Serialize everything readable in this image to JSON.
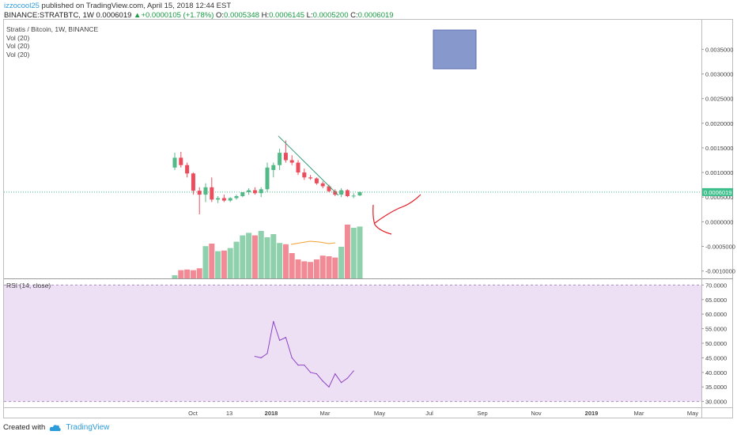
{
  "header": {
    "author": "izzocool25",
    "published_text": "published on TradingView.com, April 15, 2018 12:44 EST",
    "symbol": "BINANCE:STRATBTC, 1W",
    "price": "0.0006019",
    "change_text": "+0.0000105 (+1.78%)",
    "ohlc": {
      "O": "0.0005348",
      "H": "0.0006145",
      "L": "0.0005200",
      "C": "0.0006019"
    }
  },
  "legend": {
    "title": "Stratis / Bitcoin, 1W, BINANCE",
    "vol_lines": [
      "Vol (20)",
      "Vol (20)",
      "Vol (20)"
    ]
  },
  "rsi_label": "RSI (14, close)",
  "footer": {
    "created_with": "Created with",
    "brand": "TradingView"
  },
  "colors": {
    "up": "#53b987",
    "down": "#eb4d5c",
    "up_vol": "#8fd1ad",
    "down_vol": "#f18a94",
    "rsi_line": "#8e44c4",
    "rsi_band": "#ede0f5",
    "price_line": "#3cbf8a",
    "ma_line": "#f0a030",
    "drawing_red": "#e31b23",
    "drawing_box": "#7b8dc8"
  },
  "chart_data": [
    {
      "type": "candlestick",
      "title": "Stratis / Bitcoin, 1W, BINANCE",
      "x_ticks": [
        "Oct",
        "13",
        "2018",
        "Mar",
        "May",
        "Jul",
        "Sep",
        "Nov",
        "2019",
        "Mar",
        "May"
      ],
      "y_ticks": [
        "0.0035000",
        "0.0030000",
        "0.0025000",
        "0.0020000",
        "0.0015000",
        "0.0010000",
        "0.0005000",
        "0.0000000",
        "-0.0005000",
        "-0.0010000"
      ],
      "ylim": [
        -0.00115,
        0.0041
      ],
      "last_price": 0.0006019,
      "last_price_label": "0.0006019",
      "candles": [
        {
          "o": 0.0011,
          "h": 0.0014,
          "l": 0.00105,
          "c": 0.0013
        },
        {
          "o": 0.0013,
          "h": 0.00142,
          "l": 0.0011,
          "c": 0.00115
        },
        {
          "o": 0.00115,
          "h": 0.0012,
          "l": 0.0009,
          "c": 0.00098
        },
        {
          "o": 0.00098,
          "h": 0.001,
          "l": 0.00055,
          "c": 0.00063
        },
        {
          "o": 0.00063,
          "h": 0.0007,
          "l": 0.00015,
          "c": 0.00055
        },
        {
          "o": 0.00055,
          "h": 0.00078,
          "l": 0.0004,
          "c": 0.0007
        },
        {
          "o": 0.0007,
          "h": 0.0009,
          "l": 0.0004,
          "c": 0.00045
        },
        {
          "o": 0.00045,
          "h": 0.00052,
          "l": 0.00038,
          "c": 0.00048
        },
        {
          "o": 0.00048,
          "h": 0.00055,
          "l": 0.0004,
          "c": 0.00043
        },
        {
          "o": 0.00043,
          "h": 0.0005,
          "l": 0.0004,
          "c": 0.00048
        },
        {
          "o": 0.00048,
          "h": 0.00055,
          "l": 0.00045,
          "c": 0.00052
        },
        {
          "o": 0.00052,
          "h": 0.0006,
          "l": 0.0005,
          "c": 0.0006
        },
        {
          "o": 0.0006,
          "h": 0.00068,
          "l": 0.00055,
          "c": 0.00064
        },
        {
          "o": 0.00064,
          "h": 0.0007,
          "l": 0.00055,
          "c": 0.00058
        },
        {
          "o": 0.00058,
          "h": 0.0007,
          "l": 0.0005,
          "c": 0.00066
        },
        {
          "o": 0.00066,
          "h": 0.0012,
          "l": 0.0006,
          "c": 0.0011
        },
        {
          "o": 0.00105,
          "h": 0.0012,
          "l": 0.0009,
          "c": 0.00115
        },
        {
          "o": 0.00115,
          "h": 0.00148,
          "l": 0.00105,
          "c": 0.0014
        },
        {
          "o": 0.0014,
          "h": 0.00165,
          "l": 0.0012,
          "c": 0.00125
        },
        {
          "o": 0.00125,
          "h": 0.00135,
          "l": 0.00115,
          "c": 0.0012
        },
        {
          "o": 0.0012,
          "h": 0.00125,
          "l": 0.00095,
          "c": 0.001
        },
        {
          "o": 0.001,
          "h": 0.00108,
          "l": 0.00085,
          "c": 0.0009
        },
        {
          "o": 0.0009,
          "h": 0.00095,
          "l": 0.00085,
          "c": 0.00088
        },
        {
          "o": 0.00088,
          "h": 0.0009,
          "l": 0.00075,
          "c": 0.00078
        },
        {
          "o": 0.00078,
          "h": 0.00082,
          "l": 0.00068,
          "c": 0.00072
        },
        {
          "o": 0.00072,
          "h": 0.00075,
          "l": 0.0006,
          "c": 0.00062
        },
        {
          "o": 0.00062,
          "h": 0.00066,
          "l": 0.00052,
          "c": 0.00055
        },
        {
          "o": 0.00055,
          "h": 0.00068,
          "l": 0.0005,
          "c": 0.00064
        },
        {
          "o": 0.00064,
          "h": 0.00066,
          "l": 0.0005,
          "c": 0.00052
        },
        {
          "o": 0.00052,
          "h": 0.00058,
          "l": 0.00048,
          "c": 0.00053
        },
        {
          "o": 0.000535,
          "h": 0.0006145,
          "l": 0.00052,
          "c": 0.0006019
        }
      ],
      "volume_relative": [
        0.05,
        0.13,
        0.14,
        0.13,
        0.16,
        0.51,
        0.55,
        0.43,
        0.44,
        0.48,
        0.58,
        0.68,
        0.72,
        0.68,
        0.75,
        0.65,
        0.7,
        0.56,
        0.54,
        0.4,
        0.3,
        0.27,
        0.26,
        0.3,
        0.36,
        0.35,
        0.33,
        0.5,
        0.85,
        0.8,
        0.82
      ]
    },
    {
      "type": "line",
      "title": "RSI (14, close)",
      "y_ticks": [
        "70.0000",
        "65.0000",
        "60.0000",
        "55.0000",
        "50.0000",
        "45.0000",
        "40.0000",
        "35.0000",
        "30.0000"
      ],
      "band": [
        30,
        70
      ],
      "ylim": [
        28,
        72
      ],
      "start_index": 13,
      "values": [
        45.5,
        45.0,
        46.5,
        57.5,
        51.0,
        52.0,
        45.0,
        42.5,
        42.5,
        40.0,
        39.5,
        37.0,
        35.0,
        39.5,
        36.5,
        38.0,
        40.5
      ]
    }
  ]
}
